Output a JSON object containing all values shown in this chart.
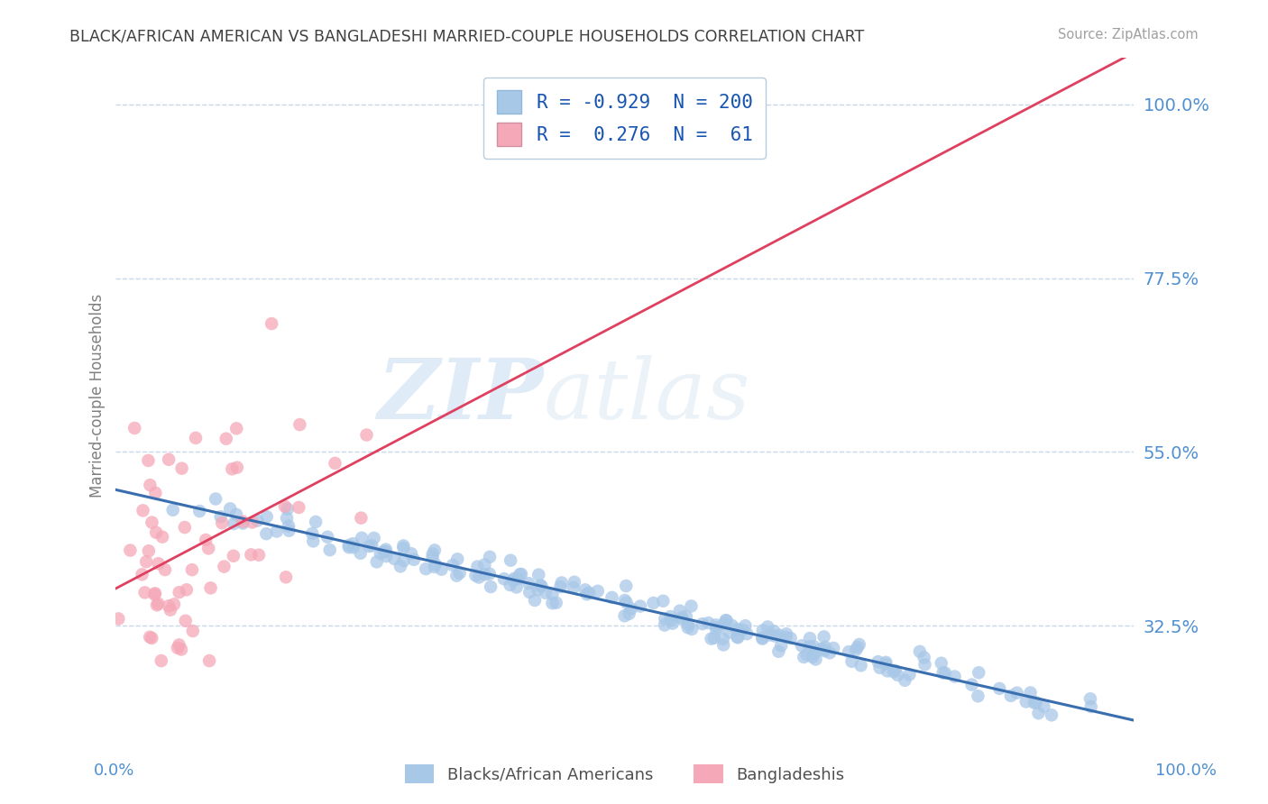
{
  "title": "BLACK/AFRICAN AMERICAN VS BANGLADESHI MARRIED-COUPLE HOUSEHOLDS CORRELATION CHART",
  "source": "Source: ZipAtlas.com",
  "ylabel": "Married-couple Households",
  "ytick_labels": [
    "32.5%",
    "55.0%",
    "77.5%",
    "100.0%"
  ],
  "ytick_values": [
    0.325,
    0.55,
    0.775,
    1.0
  ],
  "xlim": [
    0.0,
    1.0
  ],
  "ylim": [
    0.185,
    1.06
  ],
  "blue_R": -0.929,
  "blue_N": 200,
  "pink_R": 0.276,
  "pink_N": 61,
  "blue_color": "#a8c8e8",
  "blue_line_color": "#3a6faf",
  "pink_color": "#f5a8b8",
  "pink_line_color": "#e04060",
  "watermark_zip": "ZIP",
  "watermark_atlas": "atlas",
  "background_color": "#ffffff",
  "grid_color": "#c8d8e8",
  "title_color": "#404040",
  "source_color": "#a0a0a0",
  "label_color": "#5090d0",
  "ylabel_color": "#808080"
}
